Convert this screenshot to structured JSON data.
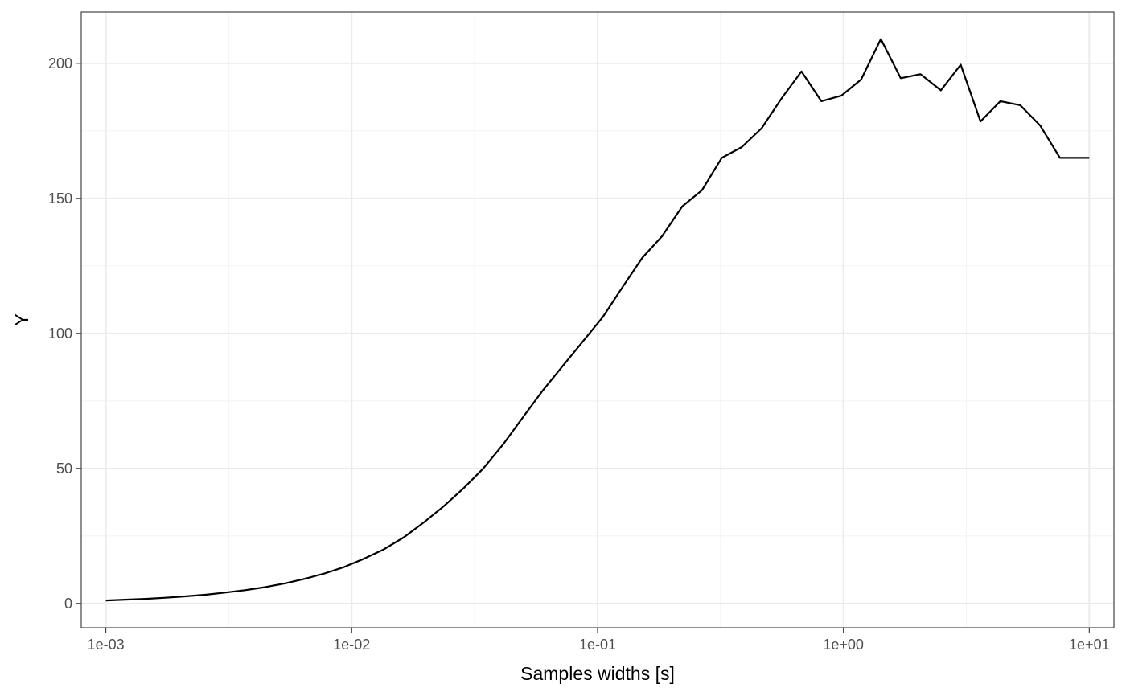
{
  "chart_data": {
    "type": "line",
    "title": "",
    "xlabel": "Samples widths [s]",
    "ylabel": "Y",
    "x_scale": "log10",
    "xlim": [
      0.000794,
      12.6
    ],
    "ylim": [
      -9,
      219
    ],
    "x_ticks": [
      0.001,
      0.01,
      0.1,
      1,
      10
    ],
    "x_tick_labels": [
      "1e-03",
      "1e-02",
      "1e-01",
      "1e+00",
      "1e+01"
    ],
    "y_ticks": [
      0,
      50,
      100,
      150,
      200
    ],
    "y_tick_labels": [
      "0",
      "50",
      "100",
      "150",
      "200"
    ],
    "grid": true,
    "legend": "none",
    "colors": {
      "line": "#000000",
      "background": "#ffffff"
    },
    "series": [
      {
        "x": [
          0.001,
          0.0012,
          0.00145,
          0.00175,
          0.0021,
          0.00254,
          0.00305,
          0.00368,
          0.00443,
          0.00534,
          0.00643,
          0.00775,
          0.00933,
          0.0112,
          0.0135,
          0.0163,
          0.0196,
          0.0237,
          0.0285,
          0.0343,
          0.0414,
          0.0498,
          0.06,
          0.0723,
          0.0871,
          0.105,
          0.126,
          0.152,
          0.183,
          0.221,
          0.266,
          0.32,
          0.386,
          0.465,
          0.56,
          0.675,
          0.813,
          0.98,
          1.18,
          1.42,
          1.71,
          2.06,
          2.49,
          3.0,
          3.61,
          4.35,
          5.24,
          6.31,
          7.6,
          9.16,
          10.0
        ],
        "y": [
          1.1,
          1.4,
          1.7,
          2.1,
          2.6,
          3.2,
          4.0,
          4.9,
          6.0,
          7.4,
          9.1,
          11.1,
          13.5,
          16.5,
          20.0,
          24.5,
          29.9,
          36.0,
          42.6,
          50.0,
          59.0,
          69.0,
          79.0,
          88.0,
          97.0,
          106.0,
          117.0,
          128.0,
          136.0,
          147.0,
          153.0,
          165.0,
          169.0,
          176.0,
          187.0,
          197.0,
          186.0,
          188.0,
          194.0,
          209.0,
          194.5,
          196.0,
          190.0,
          199.5,
          178.5,
          186.0,
          184.5,
          177.0,
          165.0,
          165.0,
          165.0
        ]
      }
    ]
  }
}
